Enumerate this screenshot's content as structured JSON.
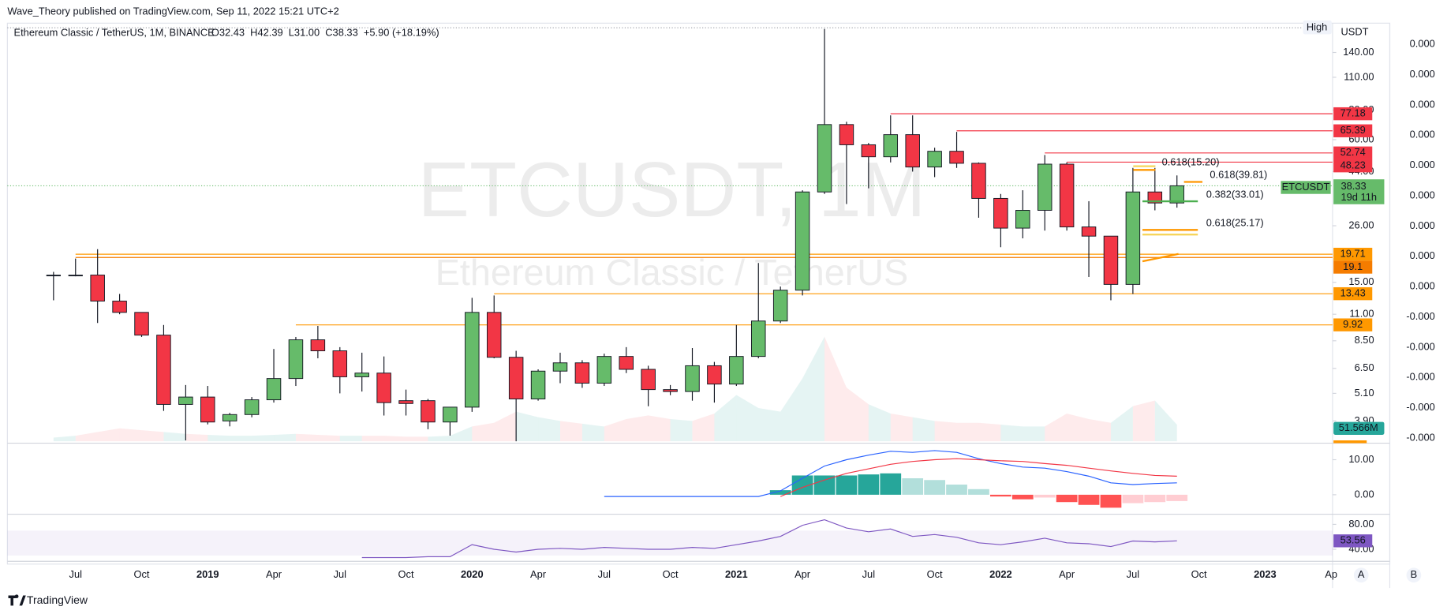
{
  "header": {
    "publisher": "Wave_Theory published on TradingView.com, Sep 11, 2022 15:21 UTC+2",
    "logo": "TradingView"
  },
  "scale_buttons": [
    "A",
    "B"
  ],
  "chart_data": [
    {
      "type": "candlestick",
      "symbol_title": "Ethereum Classic / TetherUS, 1M, BINANCE",
      "ohlc_legend": "O32.43  H42.39  L31.00  C38.33  +5.90 (+18.19%)",
      "watermark": "ETCUSDT, 1M",
      "watermark_subtitle": "Ethereum Classic / TetherUS",
      "currency": "USDT",
      "high_tag": "High",
      "categories": [
        "2018-06",
        "2018-07",
        "2018-08",
        "2018-09",
        "2018-10",
        "2018-11",
        "2018-12",
        "2019-01",
        "2019-02",
        "2019-03",
        "2019-04",
        "2019-05",
        "2019-06",
        "2019-07",
        "2019-08",
        "2019-09",
        "2019-10",
        "2019-11",
        "2019-12",
        "2020-01",
        "2020-02",
        "2020-03",
        "2020-04",
        "2020-05",
        "2020-06",
        "2020-07",
        "2020-08",
        "2020-09",
        "2020-10",
        "2020-11",
        "2020-12",
        "2021-01",
        "2021-02",
        "2021-03",
        "2021-04",
        "2021-05",
        "2021-06",
        "2021-07",
        "2021-08",
        "2021-09",
        "2021-10",
        "2021-11",
        "2021-12",
        "2022-01",
        "2022-02",
        "2022-03",
        "2022-04",
        "2022-05",
        "2022-06",
        "2022-07",
        "2022-08",
        "2022-09"
      ],
      "open": [
        16.1,
        16.1,
        16.1,
        12.5,
        11.2,
        8.98,
        4.58,
        4.92,
        3.9,
        4.15,
        4.79,
        5.89,
        8.58,
        7.71,
        5.99,
        6.21,
        4.75,
        4.75,
        3.86,
        4.46,
        11.2,
        7.24,
        4.83,
        6.33,
        6.86,
        5.63,
        7.3,
        6.44,
        5.29,
        5.19,
        6.67,
        5.58,
        7.3,
        10.3,
        13.9,
        36.1,
        69.5,
        57.1,
        50.8,
        63.0,
        46.0,
        53.6,
        47.7,
        33.9,
        25.4,
        30.2,
        47.3,
        25.7,
        23.5,
        14.7,
        36.1,
        32.43
      ],
      "high": [
        16.6,
        18.9,
        20.7,
        13.4,
        11.2,
        9.91,
        5.53,
        5.48,
        4.22,
        4.92,
        7.85,
        8.82,
        9.82,
        7.99,
        7.57,
        7.3,
        5.29,
        4.83,
        4.46,
        12.9,
        13.2,
        7.71,
        6.44,
        7.57,
        7.04,
        7.5,
        7.99,
        6.67,
        5.53,
        7.92,
        6.92,
        9.91,
        18.1,
        14.4,
        36.7,
        176,
        71.4,
        58.1,
        76.0,
        76.0,
        55.5,
        64.7,
        48.1,
        35.4,
        36.7,
        51.7,
        48.1,
        33.0,
        23.5,
        45.6,
        45.6,
        42.39
      ],
      "low": [
        12.6,
        15.9,
        10.1,
        11.0,
        8.82,
        4.3,
        3.23,
        3.77,
        3.7,
        4.04,
        4.66,
        5.48,
        7.17,
        5.1,
        5.19,
        4.11,
        4.11,
        3.6,
        3.38,
        4.26,
        7.17,
        3.2,
        4.75,
        5.63,
        5.38,
        5.48,
        6.21,
        4.5,
        5.01,
        4.75,
        4.66,
        5.48,
        7.17,
        10.1,
        13.2,
        35.4,
        32.1,
        37.4,
        48.1,
        44.0,
        41.7,
        45.6,
        28.1,
        21.1,
        23.0,
        24.8,
        24.8,
        15.8,
        12.6,
        13.4,
        30.2,
        31.0
      ],
      "close": [
        16.1,
        16.1,
        12.5,
        11.2,
        8.98,
        4.58,
        4.92,
        3.86,
        4.15,
        4.79,
        5.89,
        8.58,
        7.71,
        5.99,
        6.21,
        4.66,
        4.62,
        3.86,
        4.46,
        11.2,
        7.24,
        4.83,
        6.33,
        6.86,
        5.63,
        7.3,
        6.44,
        5.29,
        5.19,
        6.67,
        5.58,
        7.3,
        10.3,
        13.9,
        36.1,
        69.5,
        57.1,
        50.8,
        63.0,
        46.0,
        53.6,
        47.7,
        33.9,
        25.4,
        30.2,
        47.3,
        25.7,
        23.5,
        14.7,
        36.1,
        32.43,
        38.33
      ],
      "up_color": "#66bb6a",
      "down_color": "#f23645",
      "doji_color": "#131722",
      "log_scale": true,
      "grid": false,
      "ylim": [
        3.2,
        178
      ],
      "yticks": [
        {
          "value": 140,
          "label": "140.00"
        },
        {
          "value": 110,
          "label": "110.00"
        },
        {
          "value": 80,
          "label": "80.00"
        },
        {
          "value": 60,
          "label": "60.00"
        },
        {
          "value": 44,
          "label": "44.00"
        },
        {
          "value": 26,
          "label": "26.00"
        },
        {
          "value": 15,
          "label": "15.00"
        },
        {
          "value": 11,
          "label": "11.00"
        },
        {
          "value": 8.5,
          "label": "8.50"
        },
        {
          "value": 6.5,
          "label": "6.50"
        },
        {
          "value": 5.1,
          "label": "5.10"
        },
        {
          "value": 3.9,
          "label": "3.90"
        }
      ],
      "xticks": [
        {
          "value": "2018-07",
          "label": "Jul"
        },
        {
          "value": "2018-10",
          "label": "Oct"
        },
        {
          "value": "2019-01",
          "label": "2019"
        },
        {
          "value": "2019-04",
          "label": "Apr"
        },
        {
          "value": "2019-07",
          "label": "Jul"
        },
        {
          "value": "2019-10",
          "label": "Oct"
        },
        {
          "value": "2020-01",
          "label": "2020"
        },
        {
          "value": "2020-04",
          "label": "Apr"
        },
        {
          "value": "2020-07",
          "label": "Jul"
        },
        {
          "value": "2020-10",
          "label": "Oct"
        },
        {
          "value": "2021-01",
          "label": "2021"
        },
        {
          "value": "2021-04",
          "label": "Apr"
        },
        {
          "value": "2021-07",
          "label": "Jul"
        },
        {
          "value": "2021-10",
          "label": "Oct"
        },
        {
          "value": "2022-01",
          "label": "2022"
        },
        {
          "value": "2022-04",
          "label": "Apr"
        },
        {
          "value": "2022-07",
          "label": "Jul"
        },
        {
          "value": "2022-10",
          "label": "Oct"
        },
        {
          "value": "2023-01",
          "label": "2023"
        },
        {
          "value": "2023-04",
          "label": "Ap"
        }
      ],
      "levels": [
        {
          "value": 77.18,
          "color": "#f23645",
          "start": "2021-08"
        },
        {
          "value": 65.39,
          "color": "#f23645",
          "start": "2021-11"
        },
        {
          "value": 52.74,
          "color": "#f23645",
          "start": "2022-03"
        },
        {
          "value": 48.23,
          "color": "#f23645",
          "start": "2022-04"
        },
        {
          "value": 19.71,
          "color": "#ff9800",
          "start": "2018-07"
        },
        {
          "value": 19.1,
          "color": "#f57c00",
          "start": "2018-07"
        },
        {
          "value": 13.43,
          "color": "#ff9800",
          "start": "2020-02"
        },
        {
          "value": 9.92,
          "color": "#ff9800",
          "start": "2019-05"
        }
      ],
      "last_price": {
        "name": "ETCUSDT",
        "countdown": "19d 11h"
      },
      "fib_labels": [
        {
          "text": "0.618(15.20)",
          "color": "#f6d55c"
        },
        {
          "text": "0.618(39.81)",
          "color": "#f0b90b"
        },
        {
          "text": "0.382(33.01)",
          "color": "#4caf50"
        },
        {
          "text": "0.618(25.17)",
          "color": "#f0b90b"
        }
      ],
      "volume": {
        "values": [
          11.5,
          17.2,
          28.7,
          40.1,
          34.4,
          28.7,
          22.9,
          20.1,
          17.2,
          17.2,
          20.1,
          22.9,
          20.1,
          17.2,
          17.2,
          17.2,
          14.3,
          14.3,
          17.2,
          45.8,
          57.3,
          91.7,
          74.5,
          63.0,
          54.4,
          45.8,
          68.8,
          80.2,
          68.8,
          63.0,
          86.0,
          143.3,
          103.1,
          91.7,
          194.8,
          323.7,
          166.2,
          114.6,
          86.0,
          74.5,
          63.0,
          57.3,
          57.3,
          51.6,
          45.8,
          45.8,
          86.0,
          68.8,
          57.3,
          108.9,
          126.1,
          51.566
        ],
        "ylim": [
          0,
          400
        ],
        "last_label": "51.566M",
        "label_color": "#26a69a"
      },
      "second_scale_labels": [
        "0.000",
        "0.000",
        "0.000",
        "0.000",
        "0.000",
        "0.000",
        "0.000",
        "0.000",
        "0.000",
        "-0.000",
        "-0.000",
        "-0.000",
        "-0.000",
        "-0.000"
      ]
    },
    {
      "type": "macd",
      "macd": [
        null,
        null,
        null,
        null,
        null,
        null,
        null,
        null,
        null,
        null,
        null,
        null,
        null,
        null,
        null,
        null,
        null,
        null,
        null,
        null,
        null,
        null,
        null,
        null,
        null,
        -0.5,
        -0.5,
        -0.5,
        -0.5,
        -0.5,
        -0.5,
        -0.5,
        -0.5,
        1.1,
        4.7,
        8.2,
        10.0,
        11.3,
        12.4,
        12.1,
        12.6,
        12.1,
        10.3,
        8.9,
        7.9,
        7.6,
        6.6,
        5.3,
        3.4,
        2.9,
        3.2,
        3.4
      ],
      "signal": [
        null,
        null,
        null,
        null,
        null,
        null,
        null,
        null,
        null,
        null,
        null,
        null,
        null,
        null,
        null,
        null,
        null,
        null,
        null,
        null,
        null,
        null,
        null,
        null,
        null,
        null,
        null,
        null,
        null,
        null,
        null,
        null,
        null,
        -0.5,
        2.1,
        4.2,
        6.1,
        7.4,
        8.7,
        9.5,
        10.0,
        10.3,
        10.0,
        9.7,
        9.5,
        8.9,
        8.4,
        7.6,
        6.8,
        6.1,
        5.5,
        5.3
      ],
      "histogram": [
        null,
        null,
        null,
        null,
        null,
        null,
        null,
        null,
        null,
        null,
        null,
        null,
        null,
        null,
        null,
        null,
        null,
        null,
        null,
        null,
        null,
        null,
        null,
        null,
        null,
        null,
        null,
        null,
        null,
        null,
        null,
        null,
        null,
        1.3,
        5.5,
        5.5,
        5.5,
        5.8,
        6.1,
        4.7,
        4.2,
        2.9,
        1.6,
        -0.5,
        -1.3,
        -0.8,
        -2.1,
        -2.9,
        -3.7,
        -2.4,
        -2.1,
        -1.8
      ],
      "macd_color": "#2962ff",
      "signal_color": "#f23645",
      "histogram_colors": [
        "#26a69a",
        "#b2dfdb",
        "#ffcdd2",
        "#ff5252"
      ],
      "ylim": [
        -5.3,
        14.2
      ],
      "yticks": [
        {
          "value": 10,
          "label": "10.00"
        },
        {
          "value": 0,
          "label": "0.00"
        }
      ]
    },
    {
      "type": "rsi",
      "values": [
        null,
        null,
        null,
        null,
        null,
        null,
        null,
        null,
        null,
        null,
        null,
        null,
        null,
        null,
        26.7,
        26.7,
        26.7,
        28.1,
        28.1,
        47.4,
        40,
        35.6,
        40,
        41.5,
        40,
        43,
        41.5,
        40,
        40,
        43,
        41.5,
        47.4,
        53.3,
        60.7,
        78.5,
        87.4,
        74.1,
        68.1,
        72.6,
        60.7,
        63.7,
        59.3,
        50.4,
        47.4,
        51.9,
        57.8,
        50.4,
        48.9,
        44.4,
        53.3,
        51.9,
        53.56
      ],
      "color": "#7e57c2",
      "band": [
        30,
        70
      ],
      "ylim": [
        20.7,
        94.8
      ],
      "yticks": [
        {
          "value": 80,
          "label": "80.00"
        },
        {
          "value": 40,
          "label": "40.00"
        }
      ]
    }
  ]
}
